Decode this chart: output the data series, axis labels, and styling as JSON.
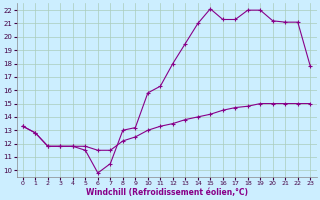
{
  "xlabel": "Windchill (Refroidissement éolien,°C)",
  "background_color": "#cceeff",
  "grid_color": "#aaccbb",
  "line_color": "#880088",
  "xlim": [
    -0.5,
    23.5
  ],
  "ylim": [
    9.5,
    22.5
  ],
  "xticks": [
    0,
    1,
    2,
    3,
    4,
    5,
    6,
    7,
    8,
    9,
    10,
    11,
    12,
    13,
    14,
    15,
    16,
    17,
    18,
    19,
    20,
    21,
    22,
    23
  ],
  "yticks": [
    10,
    11,
    12,
    13,
    14,
    15,
    16,
    17,
    18,
    19,
    20,
    21,
    22
  ],
  "line1_x": [
    0,
    1,
    2,
    3,
    4,
    5,
    6,
    7,
    8,
    9,
    10,
    11,
    12,
    13,
    14,
    15,
    16,
    17,
    18,
    19,
    20,
    21,
    22,
    23
  ],
  "line1_y": [
    13.3,
    12.8,
    11.8,
    11.8,
    11.8,
    11.5,
    9.8,
    10.5,
    13.0,
    13.2,
    15.8,
    16.3,
    18.0,
    19.5,
    21.0,
    22.1,
    21.3,
    21.3,
    22.0,
    22.0,
    21.2,
    21.1,
    21.1,
    17.8
  ],
  "line2_x": [
    0,
    1,
    2,
    3,
    4,
    5,
    6,
    7,
    8,
    9,
    10,
    11,
    12,
    13,
    14,
    15,
    16,
    17,
    18,
    19,
    20,
    21,
    22,
    23
  ],
  "line2_y": [
    13.3,
    12.8,
    11.8,
    11.8,
    11.8,
    11.8,
    11.5,
    11.5,
    12.2,
    12.5,
    13.0,
    13.3,
    13.5,
    13.8,
    14.0,
    14.2,
    14.5,
    14.7,
    14.8,
    15.0,
    15.0,
    15.0,
    15.0,
    15.0
  ]
}
